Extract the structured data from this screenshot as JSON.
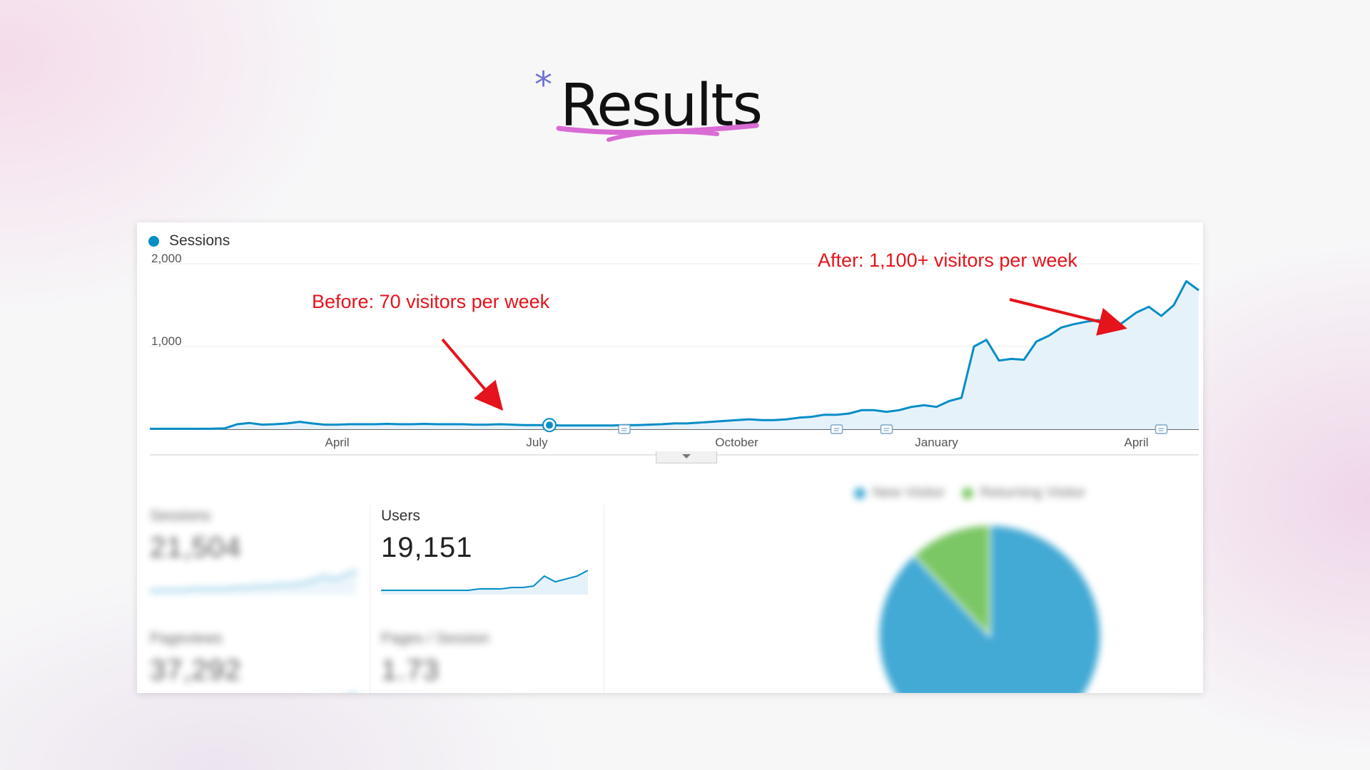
{
  "page": {
    "title": "Results",
    "title_asterisk": "*",
    "accent_color": "#6f73d6",
    "underline_color": "#d96bd4"
  },
  "chart_data": {
    "type": "line",
    "series": [
      {
        "name": "Sessions",
        "color": "#058dc7",
        "values": [
          5,
          5,
          5,
          5,
          5,
          6,
          10,
          60,
          75,
          55,
          60,
          70,
          90,
          70,
          55,
          55,
          60,
          60,
          60,
          65,
          60,
          60,
          65,
          60,
          60,
          60,
          55,
          55,
          60,
          55,
          50,
          50,
          50,
          45,
          45,
          45,
          45,
          45,
          50,
          50,
          55,
          60,
          70,
          70,
          80,
          90,
          100,
          110,
          120,
          110,
          110,
          120,
          140,
          150,
          175,
          175,
          190,
          230,
          230,
          210,
          230,
          270,
          290,
          270,
          340,
          380,
          1000,
          1080,
          830,
          850,
          840,
          1060,
          1130,
          1230,
          1270,
          1300,
          1320,
          1200,
          1300,
          1410,
          1480,
          1370,
          1500,
          1790,
          1680
        ]
      }
    ],
    "x_tick_labels": [
      "April",
      "July",
      "October",
      "January",
      "April"
    ],
    "y_tick_labels": [
      "2,000",
      "1,000"
    ],
    "ylim": [
      0,
      2000
    ],
    "annotations": [
      {
        "text": "Before: 70 visitors per week"
      },
      {
        "text": "After: 1,100+ visitors per week"
      }
    ],
    "grid": true,
    "legend_position": "top-left"
  },
  "metrics": [
    {
      "label": "Sessions",
      "value": "21,504",
      "blurred": true
    },
    {
      "label": "Users",
      "value": "19,151",
      "blurred": false
    },
    {
      "label": "Pageviews",
      "value": "37,292",
      "blurred": true
    },
    {
      "label": "Pages / Session",
      "value": "1.73",
      "blurred": true
    }
  ],
  "pie_chart": {
    "type": "pie",
    "slices": [
      {
        "label": "New Visitor",
        "value": 88,
        "color": "#058dc7"
      },
      {
        "label": "Returning Visitor",
        "value": 12,
        "color": "#50b432"
      }
    ]
  }
}
